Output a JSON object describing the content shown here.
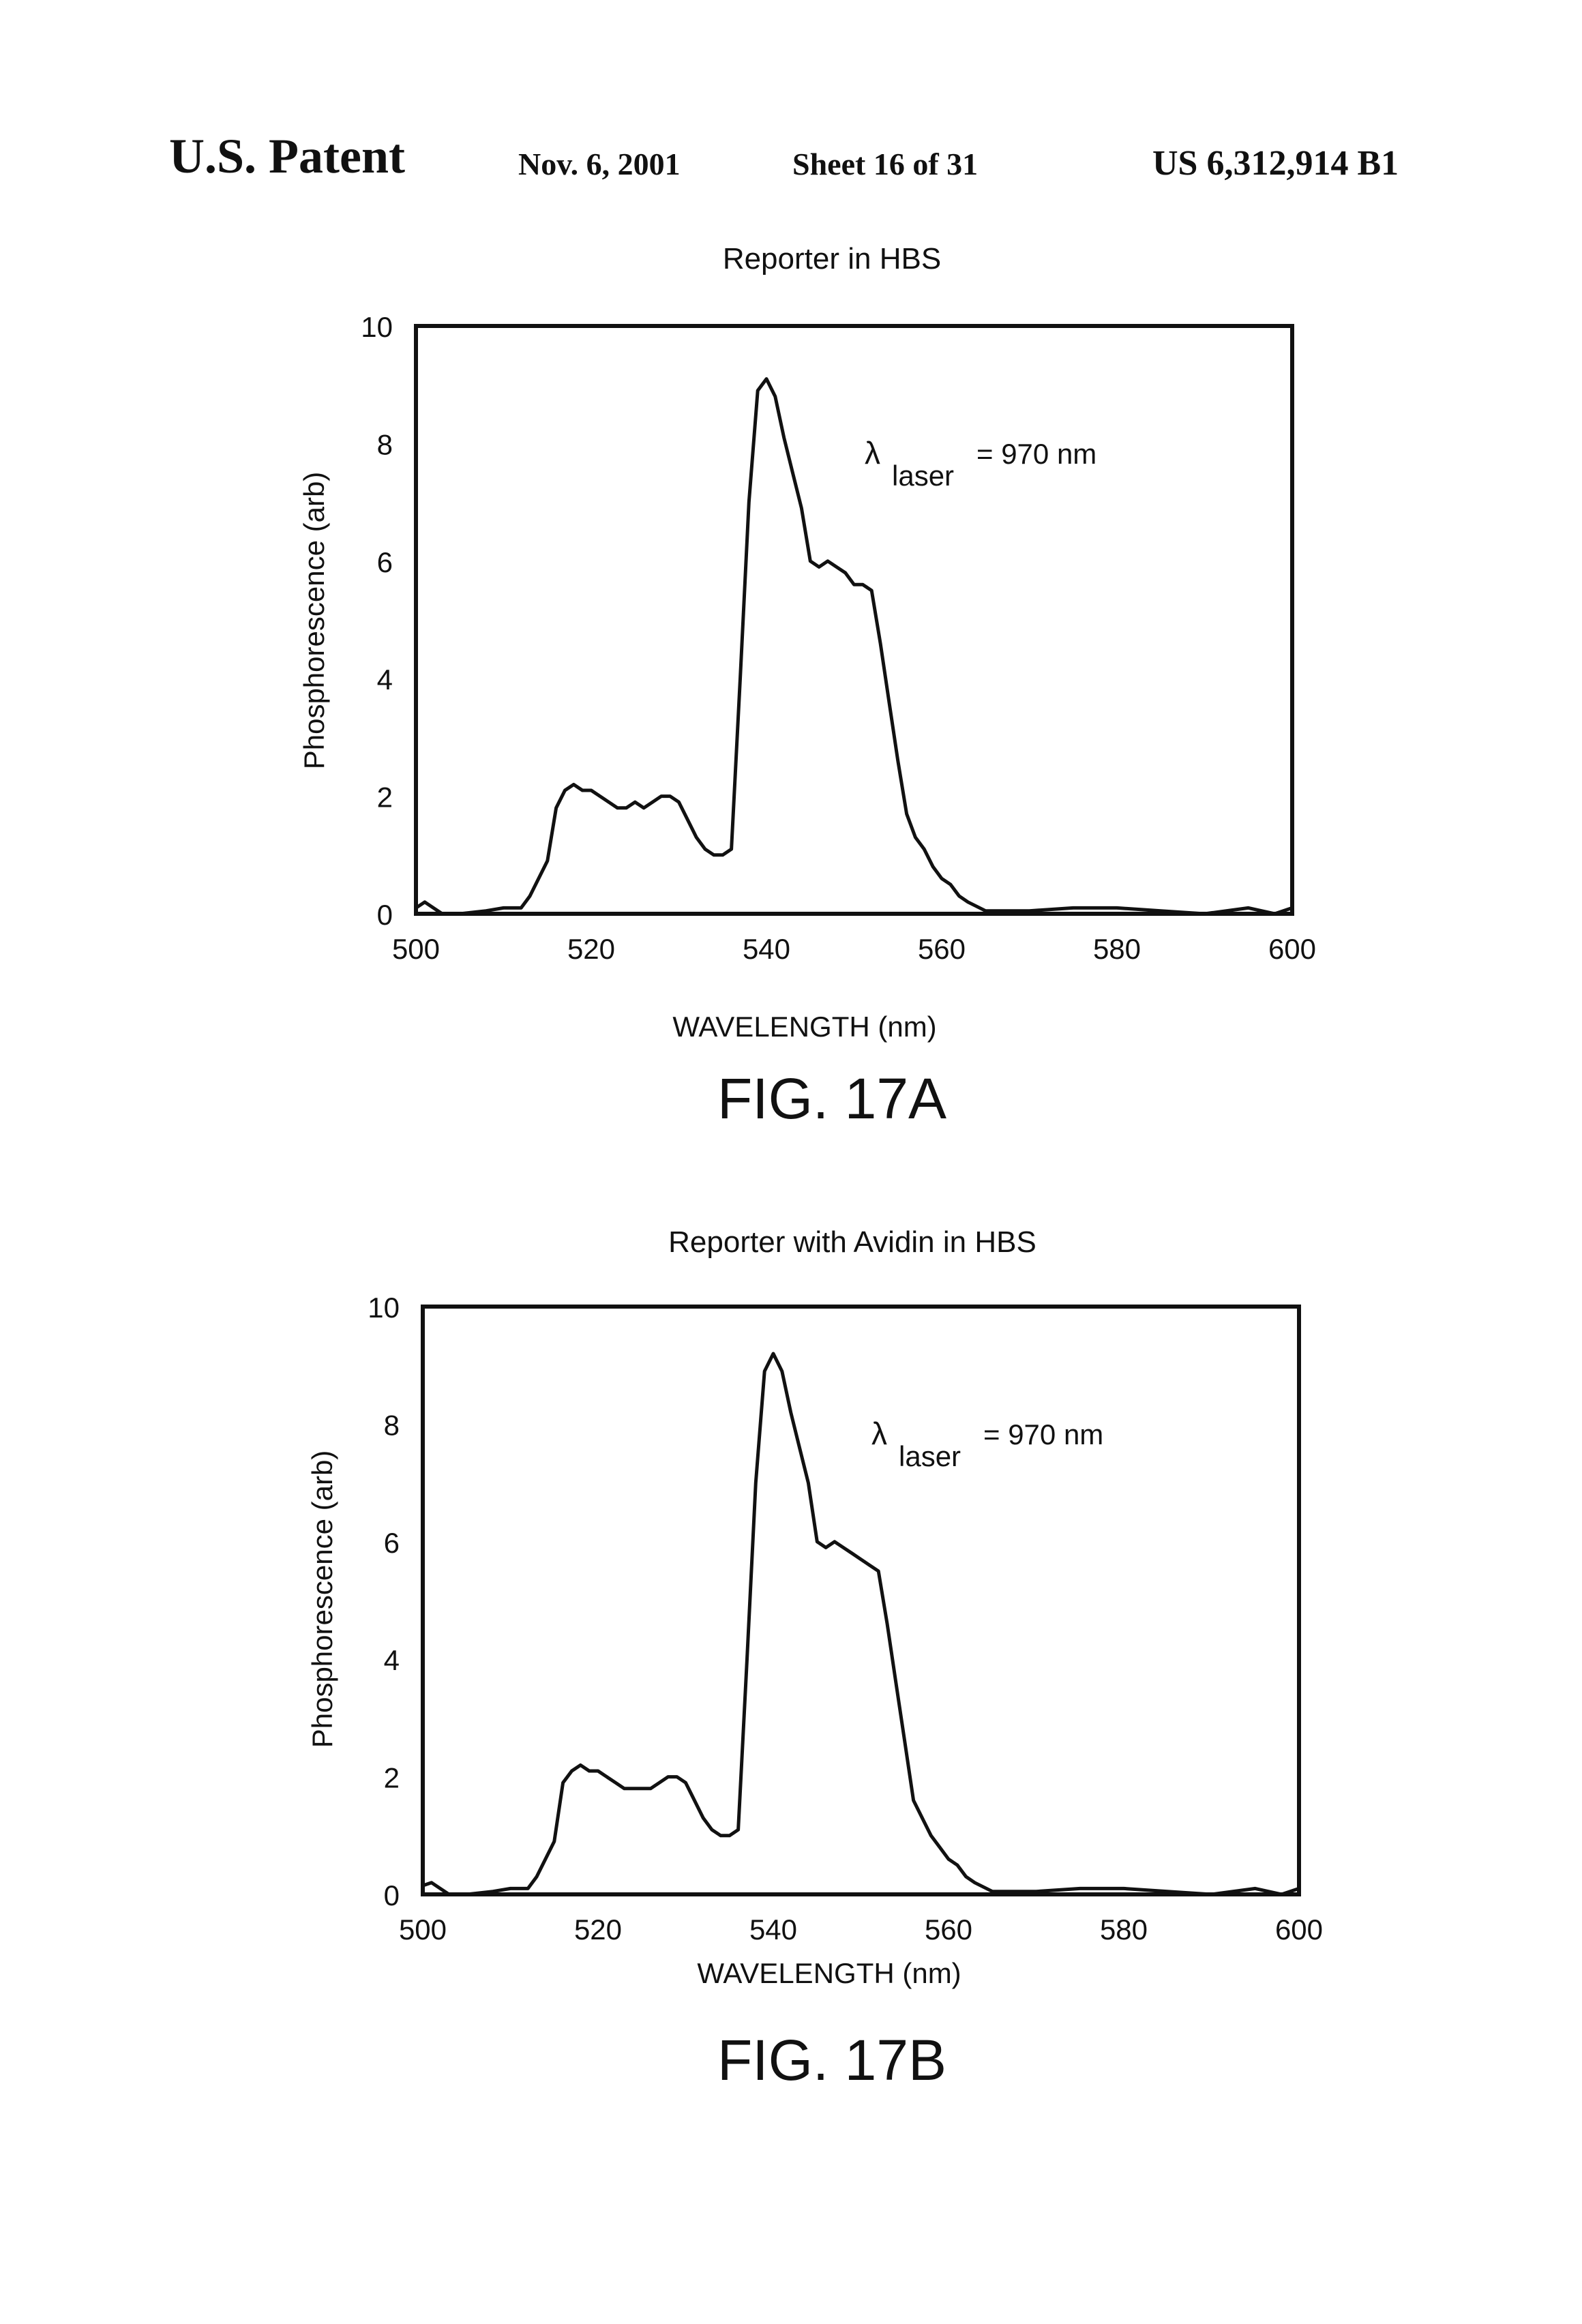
{
  "header": {
    "title": "U.S. Patent",
    "date": "Nov. 6, 2001",
    "sheet": "Sheet 16 of 31",
    "patent_number": "US 6,312,914 B1"
  },
  "chart_data": [
    {
      "type": "line",
      "figure_label": "FIG. 17A",
      "title": "Reporter in HBS",
      "xlabel": "WAVELENGTH (nm)",
      "ylabel": "Phosphorescence (arb)",
      "xlim": [
        500,
        600
      ],
      "ylim": [
        0,
        10
      ],
      "xticks": [
        500,
        520,
        540,
        560,
        580,
        600
      ],
      "yticks": [
        0,
        2,
        4,
        6,
        8,
        10
      ],
      "annotation": {
        "symbol": "λ",
        "subscript": "laser",
        "text": "= 970 nm"
      },
      "grid": false,
      "series": [
        {
          "x": [
            500,
            501,
            502,
            503,
            505,
            508,
            510,
            512,
            513,
            514,
            515,
            516,
            517,
            518,
            519,
            520,
            521,
            522,
            523,
            524,
            525,
            526,
            527,
            528,
            529,
            530,
            531,
            532,
            533,
            534,
            535,
            536,
            537,
            538,
            539,
            540,
            541,
            542,
            543,
            544,
            545,
            546,
            547,
            548,
            549,
            550,
            551,
            552,
            553,
            554,
            555,
            556,
            557,
            558,
            559,
            560,
            561,
            562,
            563,
            565,
            570,
            575,
            580,
            585,
            590,
            595,
            598,
            600
          ],
          "y": [
            0.1,
            0.2,
            0.1,
            0.0,
            0.0,
            0.05,
            0.1,
            0.1,
            0.3,
            0.6,
            0.9,
            1.8,
            2.1,
            2.2,
            2.1,
            2.1,
            2.0,
            1.9,
            1.8,
            1.8,
            1.9,
            1.8,
            1.9,
            2.0,
            2.0,
            1.9,
            1.6,
            1.3,
            1.1,
            1.0,
            1.0,
            1.1,
            4.0,
            7.0,
            8.9,
            9.1,
            8.8,
            8.1,
            7.5,
            6.9,
            6.0,
            5.9,
            6.0,
            5.9,
            5.8,
            5.6,
            5.6,
            5.5,
            4.6,
            3.6,
            2.6,
            1.7,
            1.3,
            1.1,
            0.8,
            0.6,
            0.5,
            0.3,
            0.2,
            0.05,
            0.05,
            0.1,
            0.1,
            0.05,
            0.0,
            0.1,
            0.0,
            0.1
          ]
        }
      ]
    },
    {
      "type": "line",
      "figure_label": "FIG. 17B",
      "title": "Reporter with Avidin in HBS",
      "xlabel": "WAVELENGTH (nm)",
      "ylabel": "Phosphorescence (arb)",
      "xlim": [
        500,
        600
      ],
      "ylim": [
        0,
        10
      ],
      "xticks": [
        500,
        520,
        540,
        560,
        580,
        600
      ],
      "yticks": [
        0,
        2,
        4,
        6,
        8,
        10
      ],
      "annotation": {
        "symbol": "λ",
        "subscript": "laser",
        "text": "= 970 nm"
      },
      "grid": false,
      "series": [
        {
          "x": [
            500,
            501,
            502,
            503,
            505,
            508,
            510,
            512,
            513,
            514,
            515,
            516,
            517,
            518,
            519,
            520,
            521,
            522,
            523,
            524,
            525,
            526,
            527,
            528,
            529,
            530,
            531,
            532,
            533,
            534,
            535,
            536,
            537,
            538,
            539,
            540,
            541,
            542,
            543,
            544,
            545,
            546,
            547,
            548,
            549,
            550,
            551,
            552,
            553,
            554,
            555,
            556,
            557,
            558,
            559,
            560,
            561,
            562,
            563,
            565,
            570,
            575,
            580,
            585,
            590,
            595,
            598,
            600
          ],
          "y": [
            0.15,
            0.2,
            0.1,
            0.0,
            0.0,
            0.05,
            0.1,
            0.1,
            0.3,
            0.6,
            0.9,
            1.9,
            2.1,
            2.2,
            2.1,
            2.1,
            2.0,
            1.9,
            1.8,
            1.8,
            1.8,
            1.8,
            1.9,
            2.0,
            2.0,
            1.9,
            1.6,
            1.3,
            1.1,
            1.0,
            1.0,
            1.1,
            4.0,
            7.0,
            8.9,
            9.2,
            8.9,
            8.2,
            7.6,
            7.0,
            6.0,
            5.9,
            6.0,
            5.9,
            5.8,
            5.7,
            5.6,
            5.5,
            4.6,
            3.6,
            2.6,
            1.6,
            1.3,
            1.0,
            0.8,
            0.6,
            0.5,
            0.3,
            0.2,
            0.05,
            0.05,
            0.1,
            0.1,
            0.05,
            0.0,
            0.1,
            0.0,
            0.1
          ]
        }
      ]
    }
  ]
}
